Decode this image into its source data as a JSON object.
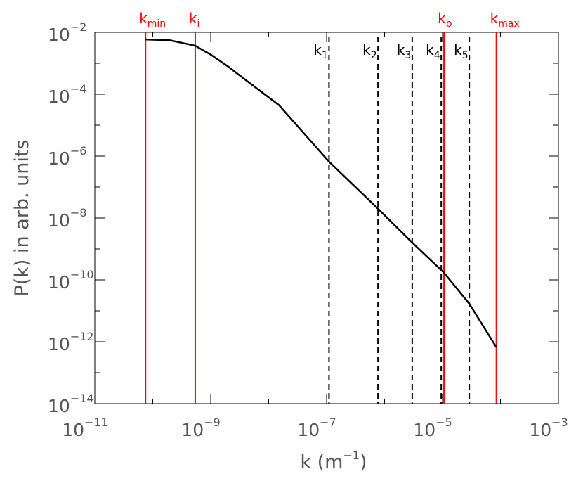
{
  "chart_data": {
    "type": "line",
    "xlabel": {
      "text": "k (m",
      "sup": "−1",
      "end": ")"
    },
    "ylabel": "P(k) in arb. units",
    "xscale": "log",
    "yscale": "log",
    "xlim": [
      1e-11,
      0.001
    ],
    "ylim": [
      1e-14,
      0.01
    ],
    "xticks": [
      {
        "value": 1e-11,
        "label": "10",
        "exp": "−11"
      },
      {
        "value": 1e-09,
        "label": "10",
        "exp": "−9"
      },
      {
        "value": 1e-07,
        "label": "10",
        "exp": "−7"
      },
      {
        "value": 1e-05,
        "label": "10",
        "exp": "−5"
      },
      {
        "value": 0.001,
        "label": "10",
        "exp": "−3"
      }
    ],
    "xminor": [
      1e-10,
      1e-08,
      1e-06,
      0.0001
    ],
    "yticks": [
      {
        "value": 0.01,
        "label": "10",
        "exp": "−2"
      },
      {
        "value": 0.0001,
        "label": "10",
        "exp": "−4"
      },
      {
        "value": 1e-06,
        "label": "10",
        "exp": "−6"
      },
      {
        "value": 1e-08,
        "label": "10",
        "exp": "−8"
      },
      {
        "value": 1e-10,
        "label": "10",
        "exp": "−10"
      },
      {
        "value": 1e-12,
        "label": "10",
        "exp": "−12"
      },
      {
        "value": 1e-14,
        "label": "10",
        "exp": "−14"
      }
    ],
    "yminor": [
      0.001,
      1e-05,
      1e-07,
      1e-09,
      1e-11,
      1e-13
    ],
    "series": [
      {
        "color": "#000000",
        "x": [
          7.5e-11,
          2e-10,
          5.4e-10,
          1e-09,
          2e-09,
          5e-09,
          1.5e-08,
          1.1e-07,
          7.7e-07,
          3e-06,
          1.06e-05,
          2.9e-05,
          8.5e-05
        ],
        "values": [
          0.0059,
          0.0055,
          0.0037,
          0.0019,
          0.00078,
          0.00021,
          4.5e-05,
          6.6e-07,
          2e-08,
          1.6e-09,
          1.7e-10,
          1.7e-11,
          6.6e-13
        ]
      }
    ],
    "vlines": [
      {
        "label": "k",
        "sub": "min",
        "x": 7.5e-11,
        "color": "#ff0000",
        "style": "solid"
      },
      {
        "label": "k",
        "sub": "i",
        "x": 5.4e-10,
        "color": "#ff0000",
        "style": "solid"
      },
      {
        "label": "k",
        "sub": "1",
        "x": 1.1e-07,
        "color": "#000000",
        "style": "dashed"
      },
      {
        "label": "k",
        "sub": "2",
        "x": 7.7e-07,
        "color": "#000000",
        "style": "dashed"
      },
      {
        "label": "k",
        "sub": "3",
        "x": 3e-06,
        "color": "#000000",
        "style": "dashed"
      },
      {
        "label": "k",
        "sub": "4",
        "x": 9.5e-06,
        "color": "#000000",
        "style": "dashed"
      },
      {
        "label": "k",
        "sub": "b",
        "x": 1.06e-05,
        "color": "#ff0000",
        "style": "solid"
      },
      {
        "label": "k",
        "sub": "5",
        "x": 2.9e-05,
        "color": "#000000",
        "style": "dashed"
      },
      {
        "label": "k",
        "sub": "max",
        "x": 8.5e-05,
        "color": "#ff0000",
        "style": "solid"
      }
    ]
  }
}
